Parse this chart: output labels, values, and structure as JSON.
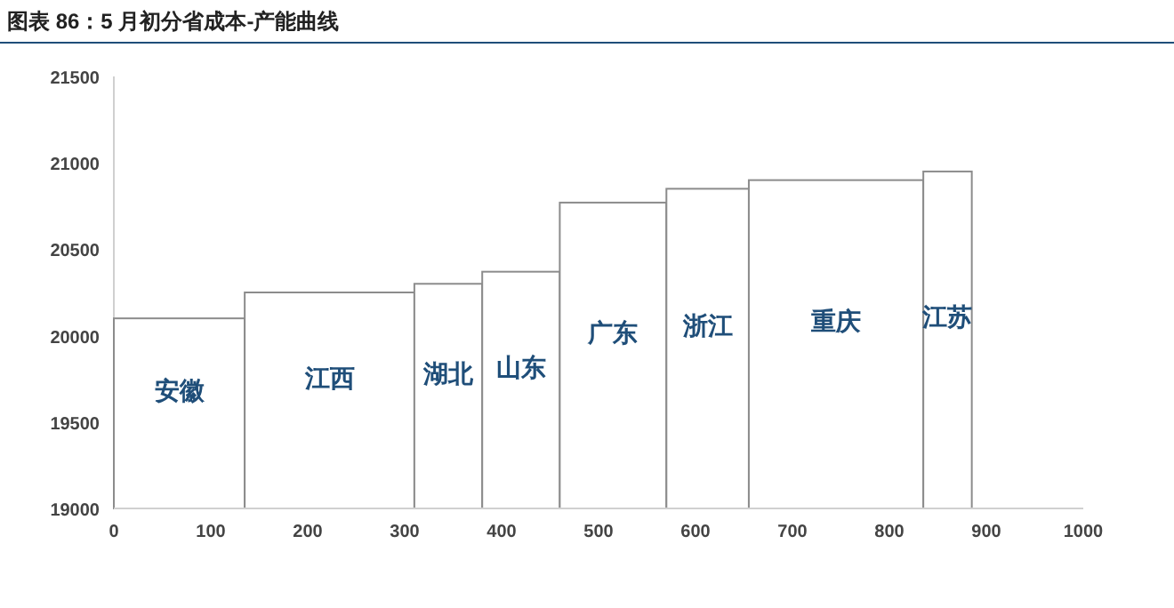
{
  "chart_data": {
    "type": "histogram",
    "title": "图表 86：5 月初分省成本-产能曲线",
    "bins": [
      0,
      135,
      310,
      380,
      460,
      570,
      655,
      835,
      885
    ],
    "values": [
      20100,
      20250,
      20300,
      20370,
      20770,
      20850,
      20900,
      20950
    ],
    "categories": [
      "安徽",
      "江西",
      "湖北",
      "山东",
      "广东",
      "浙江",
      "重庆",
      "江苏"
    ],
    "color": "#ffffff",
    "xlim": [
      0,
      1000
    ],
    "xticks": [
      0,
      100,
      200,
      300,
      400,
      500,
      600,
      700,
      800,
      900,
      1000
    ],
    "ylim": [
      19000,
      21500
    ],
    "yticks": [
      19000,
      19500,
      20000,
      20500,
      21000,
      21500
    ],
    "grid": false
  }
}
